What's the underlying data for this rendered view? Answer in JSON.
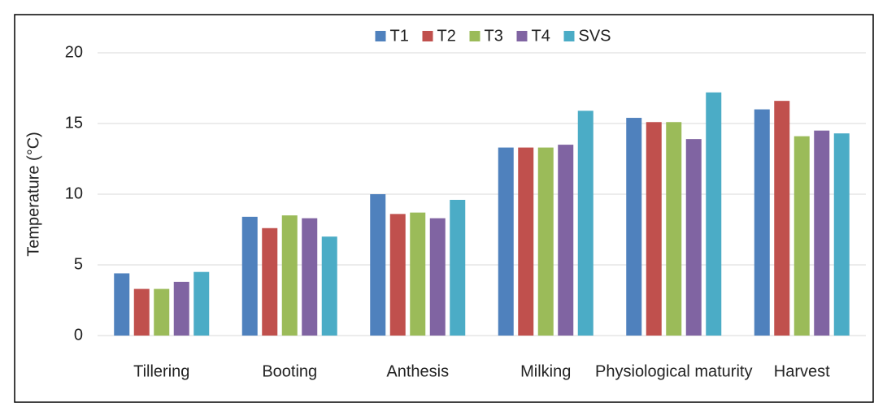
{
  "chart_data": {
    "type": "bar",
    "y_label": "Temperature (°C)",
    "categories": [
      "Tillering",
      "Booting",
      "Anthesis",
      "Milking",
      "Physiological maturity",
      "Harvest"
    ],
    "series": [
      {
        "name": "T1",
        "color": "#4f81bd",
        "values": [
          4.4,
          8.4,
          10.0,
          13.3,
          15.4,
          16.0
        ]
      },
      {
        "name": "T2",
        "color": "#c0504d",
        "values": [
          3.3,
          7.6,
          8.6,
          13.3,
          15.1,
          16.6
        ]
      },
      {
        "name": "T3",
        "color": "#9bbb59",
        "values": [
          3.3,
          8.5,
          8.7,
          13.3,
          15.1,
          14.1
        ]
      },
      {
        "name": "T4",
        "color": "#8064a2",
        "values": [
          3.8,
          8.3,
          8.3,
          13.5,
          13.9,
          14.5
        ]
      },
      {
        "name": "SVS",
        "color": "#4bacc6",
        "values": [
          4.5,
          7.0,
          9.6,
          15.9,
          17.2,
          14.3
        ]
      }
    ],
    "ylim": [
      0,
      20
    ],
    "yticks": [
      0,
      5,
      10,
      15,
      20
    ],
    "grid": true,
    "legend": "top"
  }
}
